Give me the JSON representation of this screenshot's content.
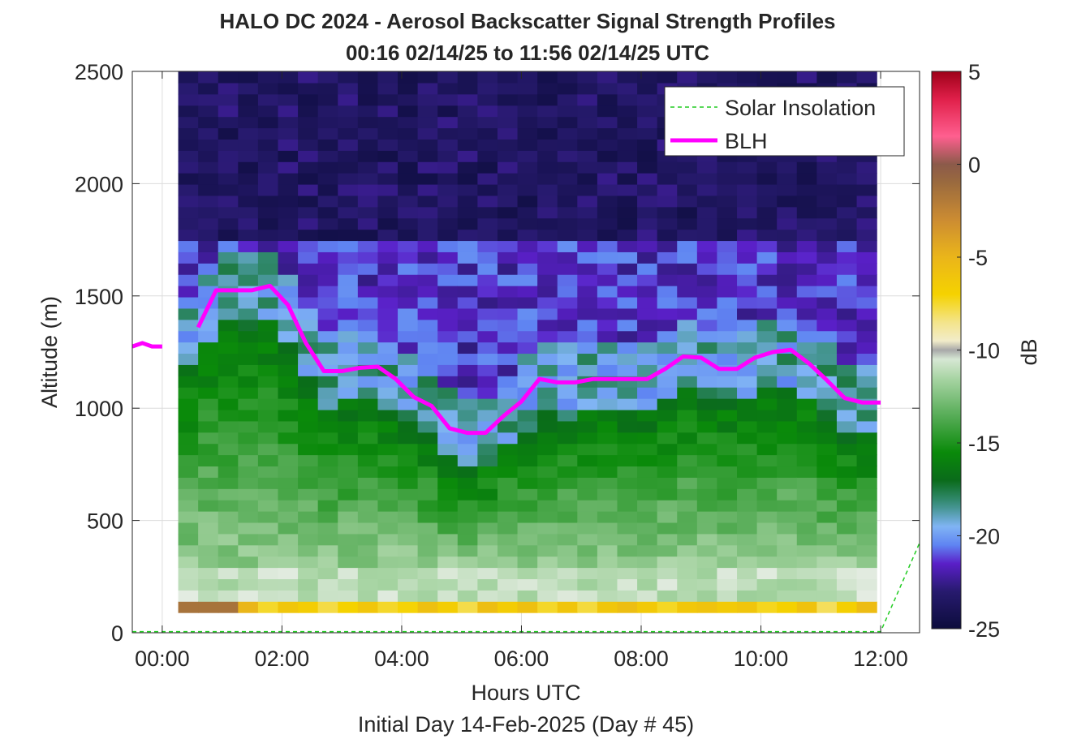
{
  "chart_data": {
    "type": "heatmap",
    "title": "HALO DC 2024 - Aerosol Backscatter Signal Strength Profiles",
    "subtitle": "00:16 02/14/25 to 11:56 02/14/25  UTC",
    "xlabel": "Hours UTC",
    "xlabel2": "Initial Day 14-Feb-2025 (Day # 45)",
    "ylabel": "Altitude (m)",
    "colorbar_label": "dB",
    "xlim": [
      -0.5,
      12.65
    ],
    "ylim": [
      0,
      2500
    ],
    "x_ticks": [
      0,
      2,
      4,
      6,
      8,
      10,
      12
    ],
    "x_tick_labels": [
      "00:00",
      "02:00",
      "04:00",
      "06:00",
      "08:00",
      "10:00",
      "12:00"
    ],
    "y_ticks": [
      0,
      500,
      1000,
      1500,
      2000,
      2500
    ],
    "y_tick_labels": [
      "0",
      "500",
      "1000",
      "1500",
      "2000",
      "2500"
    ],
    "clim": [
      -25,
      5
    ],
    "c_ticks": [
      -25,
      -20,
      -15,
      -10,
      -5,
      0,
      5
    ],
    "c_tick_labels": [
      "-25",
      "-20",
      "-15",
      "-10",
      "-5",
      "0",
      "5"
    ],
    "grid": true,
    "legend_position": "top-right",
    "heatmap": {
      "x_start_hours": 0.2667,
      "x_end_hours": 11.9333,
      "y_start_m": 90,
      "y_end_m": 2500,
      "columns": 35,
      "rows": 48,
      "note": "values in dB"
    },
    "series": [
      {
        "name": "Solar Insolation",
        "style": "dashed",
        "color": "#22cc22",
        "x": [
          -0.5,
          12.0,
          12.65
        ],
        "y": [
          5,
          5,
          400
        ]
      },
      {
        "name": "BLH",
        "style": "solid",
        "color": "#ff00ff",
        "x": [
          -0.5,
          -0.33,
          -0.17,
          0.0,
          0.1,
          0.6,
          0.9,
          1.2,
          1.5,
          1.8,
          2.1,
          2.4,
          2.7,
          3.0,
          3.3,
          3.6,
          3.9,
          4.2,
          4.5,
          4.8,
          5.1,
          5.4,
          5.7,
          6.0,
          6.3,
          6.6,
          6.9,
          7.2,
          7.5,
          7.8,
          8.1,
          8.4,
          8.7,
          9.0,
          9.3,
          9.6,
          9.9,
          10.2,
          10.5,
          10.8,
          11.1,
          11.4,
          11.7,
          12.0,
          12.3,
          12.65
        ],
        "y": [
          1275,
          1290,
          1275,
          1275,
          null,
          1360,
          1525,
          1525,
          1525,
          1545,
          1460,
          1290,
          1165,
          1165,
          1180,
          1185,
          1130,
          1050,
          1010,
          910,
          890,
          890,
          965,
          1030,
          1130,
          1115,
          1115,
          1130,
          1130,
          1130,
          1130,
          1175,
          1230,
          1225,
          1175,
          1175,
          1225,
          1250,
          1260,
          1200,
          1125,
          1045,
          1025,
          1025,
          null,
          null
        ]
      }
    ],
    "colormap_stops": [
      {
        "v": -25,
        "c": "#0c0c3c"
      },
      {
        "v": -23,
        "c": "#271a6e"
      },
      {
        "v": -21.5,
        "c": "#5a1fc8"
      },
      {
        "v": -20.5,
        "c": "#5f84f2"
      },
      {
        "v": -19.5,
        "c": "#80b4f4"
      },
      {
        "v": -18.3,
        "c": "#3a8f80"
      },
      {
        "v": -17,
        "c": "#0a6b1a"
      },
      {
        "v": -15.5,
        "c": "#0a8a0a"
      },
      {
        "v": -13.5,
        "c": "#58ad58"
      },
      {
        "v": -11.5,
        "c": "#a9d5a5"
      },
      {
        "v": -10.2,
        "c": "#e4ece2"
      },
      {
        "v": -10,
        "c": "#a8a8a8"
      },
      {
        "v": -9.8,
        "c": "#f2eedc"
      },
      {
        "v": -8.5,
        "c": "#f3e48a"
      },
      {
        "v": -7,
        "c": "#f5d200"
      },
      {
        "v": -5,
        "c": "#eab51a"
      },
      {
        "v": -3,
        "c": "#cc8c32"
      },
      {
        "v": -1,
        "c": "#9a6a3e"
      },
      {
        "v": 0,
        "c": "#8b5a4a"
      },
      {
        "v": 1.5,
        "c": "#ff5f8f"
      },
      {
        "v": 3.5,
        "c": "#e0204a"
      },
      {
        "v": 5,
        "c": "#9e0018"
      }
    ]
  }
}
